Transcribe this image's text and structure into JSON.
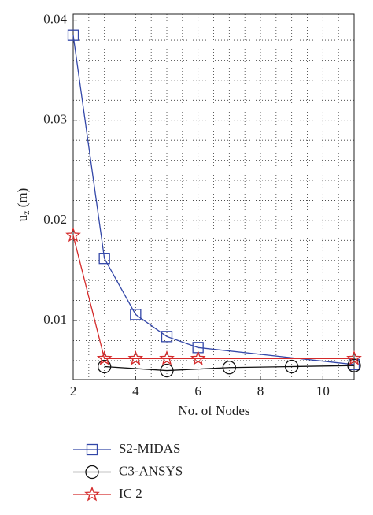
{
  "chart_data": {
    "type": "line",
    "xlabel": "No. of Nodes",
    "ylabel": [
      "u",
      "z",
      " (m)"
    ],
    "xlim": [
      2,
      11
    ],
    "ylim": [
      0.0041,
      0.0406
    ],
    "xticks": [
      2,
      4,
      6,
      8,
      10
    ],
    "yticks": [
      0.01,
      0.02,
      0.03,
      0.04
    ],
    "grid": true,
    "minor_grid": {
      "x": 0.5,
      "y": 0.002
    },
    "legend": "below",
    "series": [
      {
        "name": "S2-MIDAS",
        "color": "#3347a8",
        "marker": "square",
        "x": [
          2,
          3,
          4,
          5,
          6,
          11
        ],
        "values": [
          0.0385,
          0.0162,
          0.0106,
          0.0084,
          0.0073,
          0.0056
        ]
      },
      {
        "name": "C3-ANSYS",
        "color": "#111111",
        "marker": "circle",
        "x": [
          3,
          5,
          7,
          9,
          11
        ],
        "values": [
          0.0054,
          0.005,
          0.0053,
          0.0054,
          0.0055
        ]
      },
      {
        "name": "IC 2",
        "color": "#d42a2a",
        "marker": "star",
        "x": [
          2,
          3,
          4,
          5,
          6,
          11
        ],
        "values": [
          0.0185,
          0.0062,
          0.0062,
          0.0062,
          0.0062,
          0.0062
        ]
      }
    ]
  }
}
